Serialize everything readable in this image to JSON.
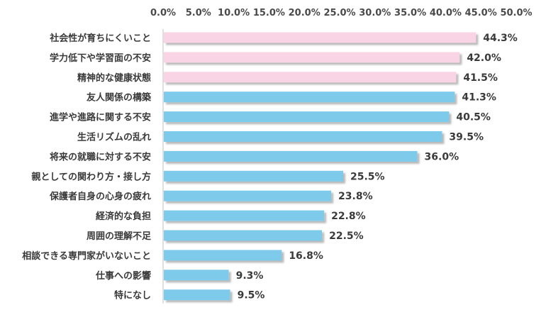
{
  "chart_data": {
    "type": "bar",
    "orientation": "horizontal",
    "categories": [
      "社会性が育ちにくいこと",
      "学力低下や学習面の不安",
      "精神的な健康状態",
      "友人関係の構築",
      "進学や進路に関する不安",
      "生活リズムの乱れ",
      "将来の就職に対する不安",
      "親としての関わり方・接し方",
      "保護者自身の心身の疲れ",
      "経済的な負担",
      "周囲の理解不足",
      "相談できる専門家がいないこと",
      "仕事への影響",
      "特になし"
    ],
    "values": [
      44.3,
      42.0,
      41.5,
      41.3,
      40.5,
      39.5,
      36.0,
      25.5,
      23.8,
      22.8,
      22.5,
      16.8,
      9.3,
      9.5
    ],
    "value_labels": [
      "44.3%",
      "42.0%",
      "41.5%",
      "41.3%",
      "40.5%",
      "39.5%",
      "36.0%",
      "25.5%",
      "23.8%",
      "22.8%",
      "22.5%",
      "16.8%",
      "9.3%",
      "9.5%"
    ],
    "bar_colors": [
      "#f9d4e4",
      "#f9d4e4",
      "#f9d4e4",
      "#7ecaea",
      "#7ecaea",
      "#7ecaea",
      "#7ecaea",
      "#7ecaea",
      "#7ecaea",
      "#7ecaea",
      "#7ecaea",
      "#7ecaea",
      "#7ecaea",
      "#7ecaea"
    ],
    "x_ticks": [
      "0.0%",
      "5.0%",
      "10.0%",
      "15.0%",
      "20.0%",
      "25.0%",
      "30.0%",
      "35.0%",
      "40.0%",
      "45.0%",
      "50.0%"
    ],
    "xlim": [
      0,
      50
    ],
    "axis_position": "top",
    "grid": false,
    "legend": "none",
    "title": "",
    "xlabel": "",
    "ylabel": ""
  }
}
